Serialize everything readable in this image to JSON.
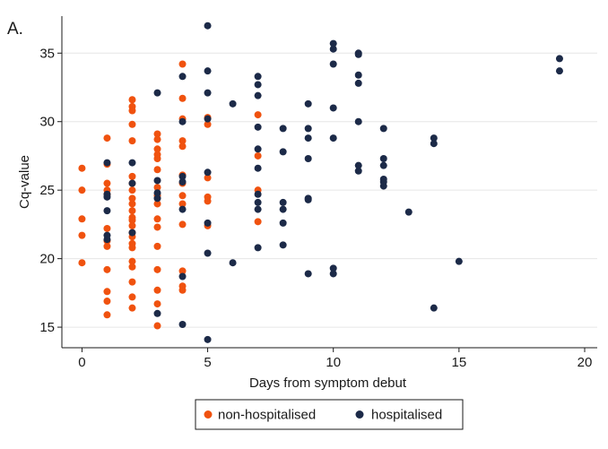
{
  "panel_label": "A.",
  "chart_data": {
    "type": "scatter",
    "xlabel": "Days from symptom debut",
    "ylabel": "Cq-value",
    "xlim": [
      -0.8,
      20.5
    ],
    "ylim": [
      13.5,
      37.7
    ],
    "x_ticks": [
      0,
      5,
      10,
      15,
      20
    ],
    "y_ticks": [
      15,
      20,
      25,
      30,
      35
    ],
    "grid": "horizontal",
    "legend_position": "bottom",
    "colors": {
      "non_hospitalised": "#f0520f",
      "hospitalised": "#1c2a48"
    },
    "series": [
      {
        "name": "non-hospitalised",
        "points": [
          [
            0,
            26.6
          ],
          [
            0,
            25.0
          ],
          [
            0,
            22.9
          ],
          [
            0,
            21.7
          ],
          [
            0,
            19.7
          ],
          [
            1,
            28.8
          ],
          [
            1,
            26.9
          ],
          [
            1,
            25.5
          ],
          [
            1,
            25.0
          ],
          [
            1,
            24.7
          ],
          [
            1,
            22.2
          ],
          [
            1,
            21.3
          ],
          [
            1,
            20.9
          ],
          [
            1,
            19.2
          ],
          [
            1,
            17.6
          ],
          [
            1,
            16.9
          ],
          [
            1,
            15.9
          ],
          [
            2,
            31.6
          ],
          [
            2,
            31.1
          ],
          [
            2,
            30.8
          ],
          [
            2,
            29.8
          ],
          [
            2,
            28.6
          ],
          [
            2,
            26.0
          ],
          [
            2,
            25.5
          ],
          [
            2,
            25.0
          ],
          [
            2,
            24.4
          ],
          [
            2,
            24.0
          ],
          [
            2,
            23.5
          ],
          [
            2,
            23.0
          ],
          [
            2,
            22.8
          ],
          [
            2,
            22.4
          ],
          [
            2,
            21.9
          ],
          [
            2,
            21.6
          ],
          [
            2,
            21.1
          ],
          [
            2,
            20.8
          ],
          [
            2,
            19.8
          ],
          [
            2,
            19.4
          ],
          [
            2,
            18.3
          ],
          [
            2,
            17.2
          ],
          [
            2,
            16.4
          ],
          [
            3,
            29.1
          ],
          [
            3,
            28.7
          ],
          [
            3,
            28.0
          ],
          [
            3,
            27.6
          ],
          [
            3,
            27.3
          ],
          [
            3,
            26.5
          ],
          [
            3,
            25.2
          ],
          [
            3,
            24.6
          ],
          [
            3,
            24.0
          ],
          [
            3,
            22.9
          ],
          [
            3,
            22.3
          ],
          [
            3,
            20.9
          ],
          [
            3,
            19.2
          ],
          [
            3,
            17.7
          ],
          [
            3,
            16.7
          ],
          [
            3,
            15.1
          ],
          [
            4,
            34.2
          ],
          [
            4,
            31.7
          ],
          [
            4,
            30.2
          ],
          [
            4,
            28.6
          ],
          [
            4,
            28.2
          ],
          [
            4,
            26.1
          ],
          [
            4,
            25.5
          ],
          [
            4,
            24.6
          ],
          [
            4,
            24.0
          ],
          [
            4,
            22.5
          ],
          [
            4,
            19.1
          ],
          [
            4,
            18.0
          ],
          [
            4,
            17.7
          ],
          [
            5,
            30.3
          ],
          [
            5,
            29.8
          ],
          [
            5,
            25.9
          ],
          [
            5,
            24.5
          ],
          [
            5,
            24.2
          ],
          [
            5,
            22.4
          ],
          [
            7,
            30.5
          ],
          [
            7,
            27.5
          ],
          [
            7,
            25.0
          ],
          [
            7,
            22.7
          ]
        ]
      },
      {
        "name": "hospitalised",
        "points": [
          [
            1,
            27.0
          ],
          [
            1,
            24.7
          ],
          [
            1,
            24.5
          ],
          [
            1,
            23.5
          ],
          [
            1,
            21.7
          ],
          [
            1,
            21.4
          ],
          [
            2,
            27.0
          ],
          [
            2,
            25.5
          ],
          [
            2,
            21.9
          ],
          [
            3,
            32.1
          ],
          [
            3,
            25.7
          ],
          [
            3,
            24.8
          ],
          [
            3,
            24.4
          ],
          [
            3,
            16.0
          ],
          [
            4,
            33.3
          ],
          [
            4,
            30.0
          ],
          [
            4,
            26.0
          ],
          [
            4,
            25.6
          ],
          [
            4,
            23.6
          ],
          [
            4,
            18.7
          ],
          [
            4,
            15.2
          ],
          [
            5,
            37.0
          ],
          [
            5,
            33.7
          ],
          [
            5,
            32.1
          ],
          [
            5,
            30.2
          ],
          [
            5,
            26.3
          ],
          [
            5,
            22.6
          ],
          [
            5,
            20.4
          ],
          [
            5,
            14.1
          ],
          [
            6,
            31.3
          ],
          [
            6,
            19.7
          ],
          [
            7,
            33.3
          ],
          [
            7,
            32.7
          ],
          [
            7,
            31.9
          ],
          [
            7,
            29.6
          ],
          [
            7,
            28.0
          ],
          [
            7,
            26.6
          ],
          [
            7,
            24.7
          ],
          [
            7,
            24.1
          ],
          [
            7,
            23.6
          ],
          [
            7,
            20.8
          ],
          [
            8,
            29.5
          ],
          [
            8,
            27.8
          ],
          [
            8,
            24.1
          ],
          [
            8,
            23.6
          ],
          [
            8,
            22.6
          ],
          [
            8,
            21.0
          ],
          [
            9,
            31.3
          ],
          [
            9,
            29.5
          ],
          [
            9,
            28.8
          ],
          [
            9,
            27.3
          ],
          [
            9,
            24.4
          ],
          [
            9,
            24.3
          ],
          [
            9,
            18.9
          ],
          [
            10,
            35.7
          ],
          [
            10,
            35.3
          ],
          [
            10,
            34.2
          ],
          [
            10,
            31.0
          ],
          [
            10,
            28.8
          ],
          [
            10,
            19.3
          ],
          [
            10,
            18.9
          ],
          [
            11,
            35.0
          ],
          [
            11,
            34.9
          ],
          [
            11,
            33.4
          ],
          [
            11,
            32.8
          ],
          [
            11,
            30.0
          ],
          [
            11,
            26.8
          ],
          [
            11,
            26.4
          ],
          [
            12,
            29.5
          ],
          [
            12,
            27.3
          ],
          [
            12,
            26.8
          ],
          [
            12,
            25.8
          ],
          [
            12,
            25.6
          ],
          [
            12,
            25.3
          ],
          [
            13,
            23.4
          ],
          [
            14,
            28.8
          ],
          [
            14,
            28.4
          ],
          [
            14,
            16.4
          ],
          [
            15,
            19.8
          ],
          [
            19,
            34.6
          ],
          [
            19,
            33.7
          ]
        ]
      }
    ]
  }
}
